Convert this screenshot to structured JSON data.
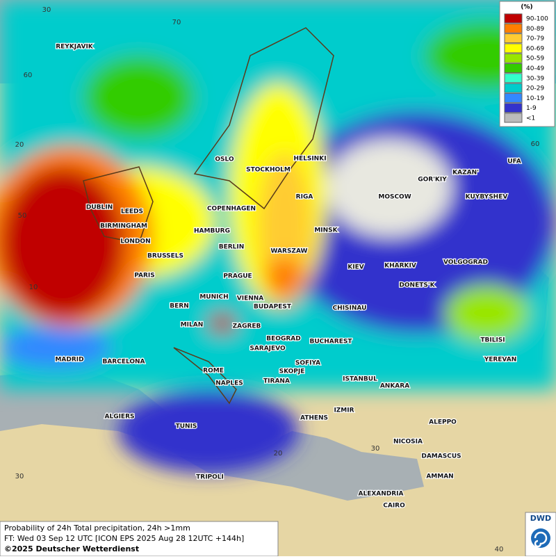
{
  "legend": {
    "title": "(%)",
    "entries": [
      {
        "label": "90-100",
        "color": "#c00000"
      },
      {
        "label": "80-89",
        "color": "#ff7f00"
      },
      {
        "label": "70-79",
        "color": "#ffcc33"
      },
      {
        "label": "60-69",
        "color": "#ffff00"
      },
      {
        "label": "50-59",
        "color": "#99e600"
      },
      {
        "label": "40-49",
        "color": "#33cc00"
      },
      {
        "label": "30-39",
        "color": "#33ffcc"
      },
      {
        "label": "20-29",
        "color": "#00cccc"
      },
      {
        "label": "10-19",
        "color": "#3388ff"
      },
      {
        "label": "1-9",
        "color": "#3333cc"
      },
      {
        "label": "<1",
        "color": "#bbbbbb"
      }
    ]
  },
  "cities": [
    "REYKJAVIK",
    "OSLO",
    "STOCKHOLM",
    "HELSINKI",
    "DUBLIN",
    "LEEDS",
    "COPENHAGEN",
    "RIGA",
    "MOSCOW",
    "GOR'KIY",
    "KAZAN'",
    "UFA",
    "KUYBYSHEV",
    "BIRMINGHAM",
    "HAMBURG",
    "MINSK",
    "LONDON",
    "BERLIN",
    "WARSZAW",
    "BRUSSELS",
    "KIEV",
    "KHARKIV",
    "VOLGOGRAD",
    "PARIS",
    "PRAGUE",
    "MUNICH",
    "VIENNA",
    "DONETS'K",
    "BERN",
    "BUDAPEST",
    "CHISINAU",
    "MILAN",
    "ZAGREB",
    "BEOGRAD",
    "BUCHAREST",
    "TBILISI",
    "SARAJEVO",
    "MADRID",
    "BARCELONA",
    "SOFIYA",
    "YEREVAN",
    "ROME",
    "SKOPJE",
    "ISTANBUL",
    "ANKARA",
    "NAPLES",
    "TIRANA",
    "IZMIR",
    "ALGIERS",
    "ATHENS",
    "ALEPPO",
    "TUNIS",
    "NICOSIA",
    "DAMASCUS",
    "AMMAN",
    "TRIPOLI",
    "ALEXANDRIA",
    "CAIRO"
  ],
  "grid_labels": [
    "30",
    "70",
    "60",
    "20",
    "50",
    "10",
    "60",
    "20",
    "30",
    "30",
    "40"
  ],
  "footer": {
    "line1": "Probability of 24h Total precipitation, 24h >1mm",
    "line2": "FT: Wed 03 Sep 12 UTC [ICON EPS 2025 Aug 28 12UTC +144h]",
    "line3": "©2025 Deutscher Wetterdienst"
  },
  "logo": "DWD"
}
